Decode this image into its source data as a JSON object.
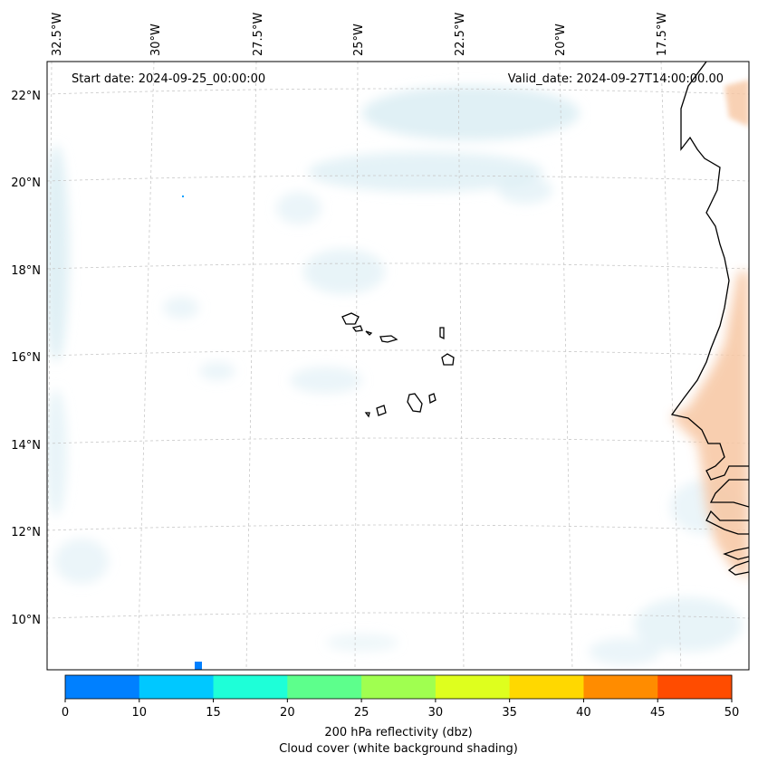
{
  "map": {
    "start_date": "Start date: 2024-09-25_00:00:00",
    "valid_date": "Valid_date: 2024-09-27T14:00:00.00",
    "lon_labels": [
      "32.5°W",
      "30°W",
      "27.5°W",
      "25°W",
      "22.5°W",
      "20°W",
      "17.5°W"
    ],
    "lat_labels": [
      "22°N",
      "20°N",
      "18°N",
      "16°N",
      "14°N",
      "12°N",
      "10°N"
    ],
    "colors": {
      "land_warm": "#f7c6a2",
      "cloud_light": "#d8ecf3",
      "coastline": "#000000",
      "grid": "#c8c8c8"
    }
  },
  "colorbar": {
    "ticks": [
      "0",
      "10",
      "15",
      "20",
      "25",
      "30",
      "35",
      "40",
      "45",
      "50"
    ],
    "colors": [
      "#0080ff",
      "#00c8ff",
      "#1effd8",
      "#5dff8c",
      "#a0ff50",
      "#deff1e",
      "#ffd800",
      "#ff8c00",
      "#ff4c00"
    ],
    "label_line1": "200 hPa reflectivity (dbz)",
    "label_line2": "Cloud cover (white background shading)"
  }
}
